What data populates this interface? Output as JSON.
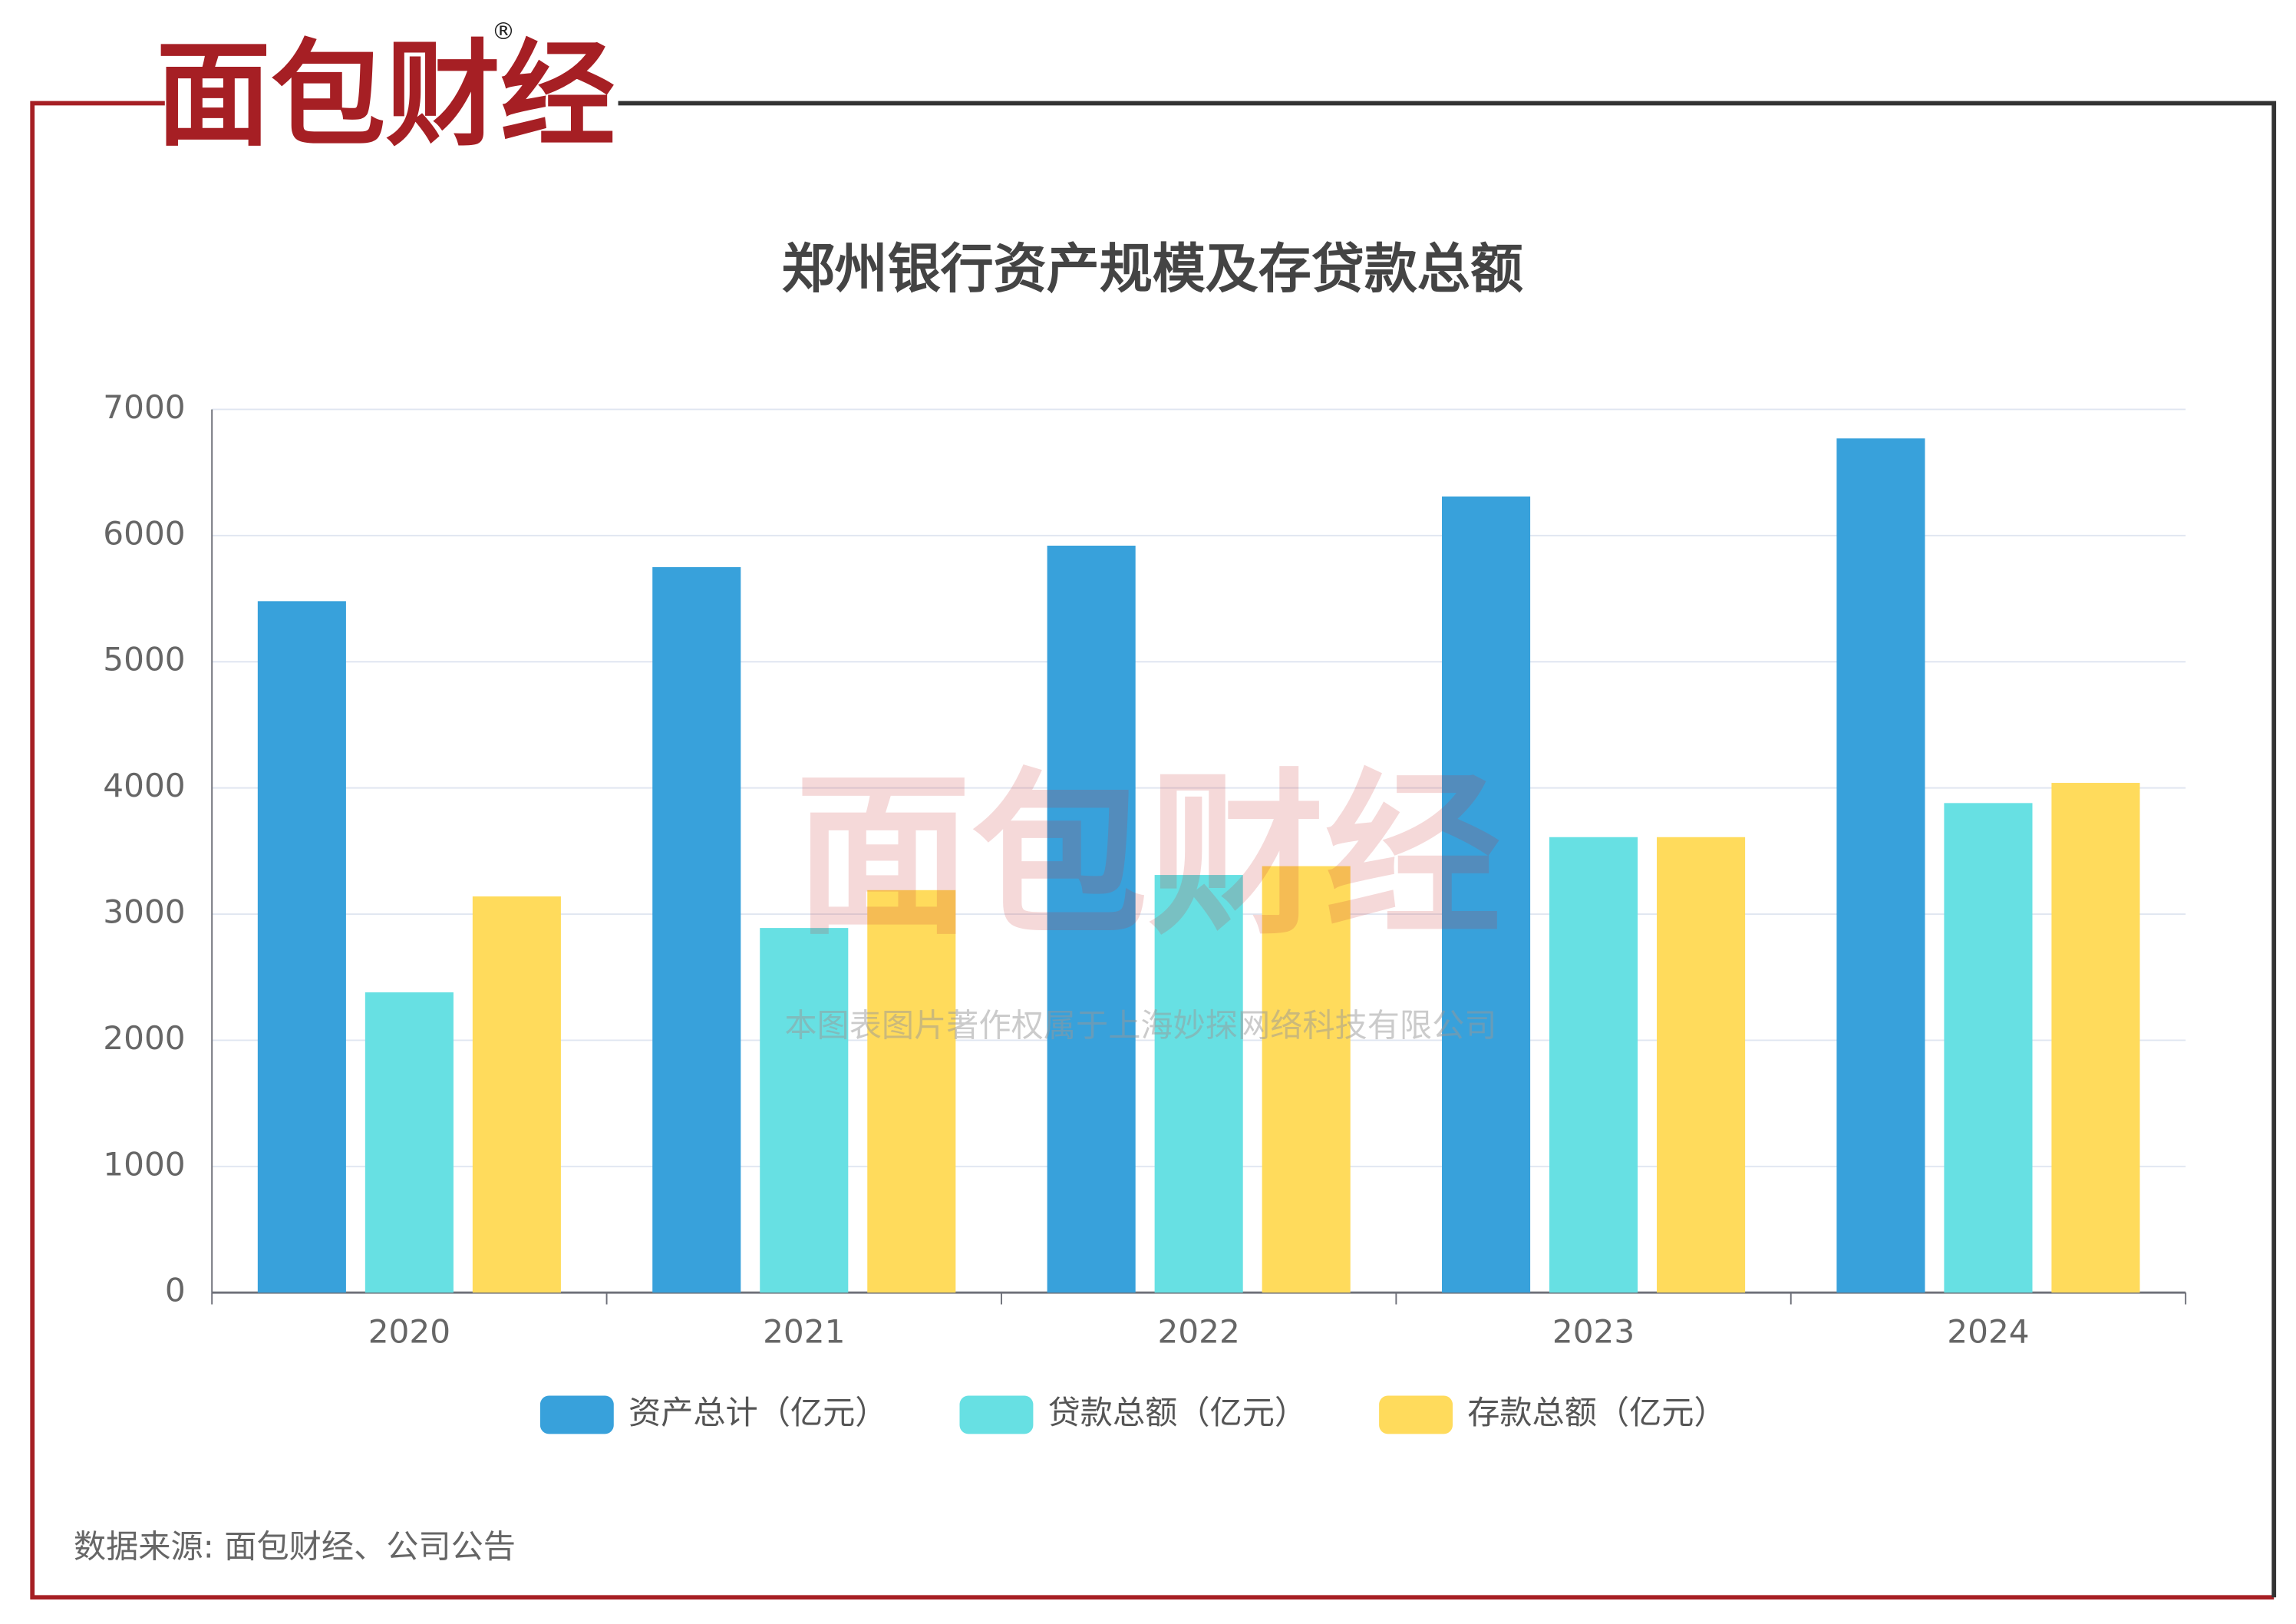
{
  "brand": {
    "name": "面包财经",
    "mark": "®"
  },
  "source": "数据来源: 面包财经、公司公告",
  "watermark": {
    "name": "面包财经",
    "note": "本图表图片著作权属于上海妙探网络科技有限公司"
  },
  "chart_data": {
    "type": "bar",
    "title": "郑州银行资产规模及存贷款总额",
    "categories": [
      "2020",
      "2021",
      "2022",
      "2023",
      "2024"
    ],
    "series": [
      {
        "name": "资产总计（亿元）",
        "color": "#38a1db",
        "values": [
          5480,
          5750,
          5920,
          6310,
          6770
        ]
      },
      {
        "name": "贷款总额（亿元）",
        "color": "#67e0e3",
        "values": [
          2380,
          2890,
          3310,
          3610,
          3880
        ]
      },
      {
        "name": "存款总额（亿元）",
        "color": "#ffdb5c",
        "values": [
          3140,
          3190,
          3380,
          3610,
          4040
        ]
      }
    ],
    "ylim": [
      0,
      7000
    ],
    "yticks": [
      0,
      1000,
      2000,
      3000,
      4000,
      5000,
      6000,
      7000
    ],
    "grid": true,
    "legend": "bottom"
  }
}
